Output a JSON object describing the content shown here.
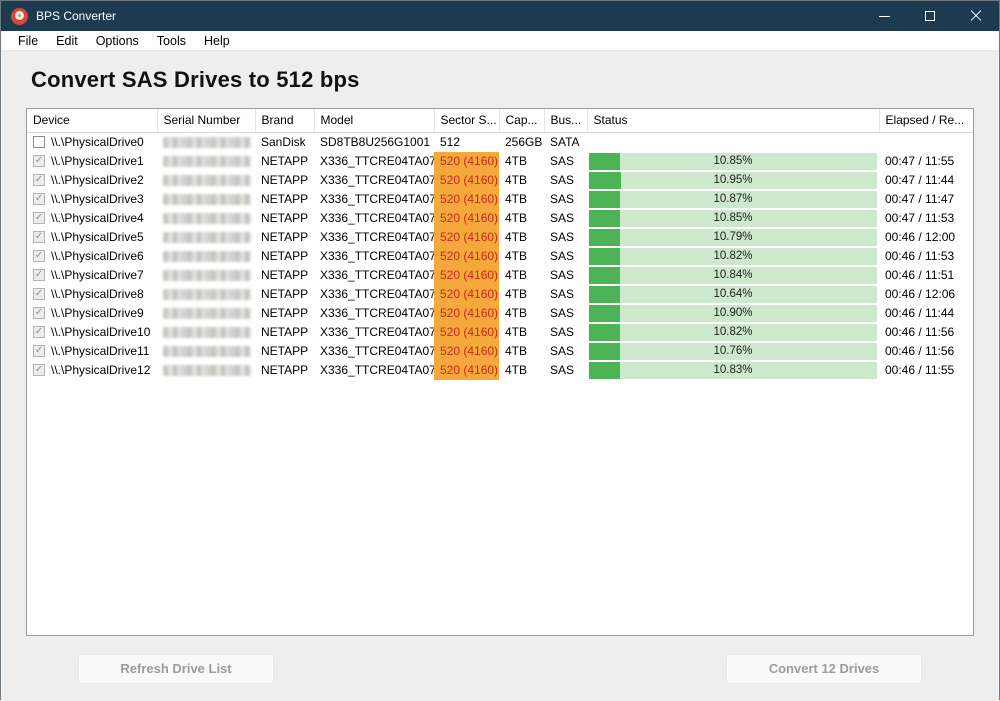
{
  "window": {
    "title": "BPS Converter",
    "icon": "disk-app-icon",
    "controls": [
      "minimize",
      "maximize",
      "close"
    ]
  },
  "menu": {
    "items": [
      "File",
      "Edit",
      "Options",
      "Tools",
      "Help"
    ]
  },
  "heading": "Convert SAS Drives to 512 bps",
  "table": {
    "columns": [
      {
        "key": "device",
        "label": "Device"
      },
      {
        "key": "serial",
        "label": "Serial Number"
      },
      {
        "key": "brand",
        "label": "Brand"
      },
      {
        "key": "model",
        "label": "Model"
      },
      {
        "key": "sector",
        "label": "Sector S..."
      },
      {
        "key": "capacity",
        "label": "Cap..."
      },
      {
        "key": "bus",
        "label": "Bus..."
      },
      {
        "key": "status",
        "label": "Status"
      },
      {
        "key": "elapsed",
        "label": "Elapsed / Re..."
      }
    ],
    "rows": [
      {
        "device": "\\\\.\\PhysicalDrive0",
        "checked": false,
        "serial_masked": true,
        "brand": "SanDisk",
        "model": "SD8TB8U256G1001",
        "sector": "512",
        "sector_alert": false,
        "capacity": "256GB",
        "bus": "SATA",
        "progress": null,
        "progress_label": "",
        "elapsed": ""
      },
      {
        "device": "\\\\.\\PhysicalDrive1",
        "checked": true,
        "serial_masked": true,
        "brand": "NETAPP",
        "model": "X336_TTCRE04TA07",
        "sector": "520 (4160)",
        "sector_alert": true,
        "capacity": "4TB",
        "bus": "SAS",
        "progress": 10.85,
        "progress_label": "10.85%",
        "elapsed": "00:47 / 11:55"
      },
      {
        "device": "\\\\.\\PhysicalDrive2",
        "checked": true,
        "serial_masked": true,
        "brand": "NETAPP",
        "model": "X336_TTCRE04TA07",
        "sector": "520 (4160)",
        "sector_alert": true,
        "capacity": "4TB",
        "bus": "SAS",
        "progress": 10.95,
        "progress_label": "10.95%",
        "elapsed": "00:47 / 11:44"
      },
      {
        "device": "\\\\.\\PhysicalDrive3",
        "checked": true,
        "serial_masked": true,
        "brand": "NETAPP",
        "model": "X336_TTCRE04TA07",
        "sector": "520 (4160)",
        "sector_alert": true,
        "capacity": "4TB",
        "bus": "SAS",
        "progress": 10.87,
        "progress_label": "10.87%",
        "elapsed": "00:47 / 11:47"
      },
      {
        "device": "\\\\.\\PhysicalDrive4",
        "checked": true,
        "serial_masked": true,
        "brand": "NETAPP",
        "model": "X336_TTCRE04TA07",
        "sector": "520 (4160)",
        "sector_alert": true,
        "capacity": "4TB",
        "bus": "SAS",
        "progress": 10.85,
        "progress_label": "10.85%",
        "elapsed": "00:47 / 11:53"
      },
      {
        "device": "\\\\.\\PhysicalDrive5",
        "checked": true,
        "serial_masked": true,
        "brand": "NETAPP",
        "model": "X336_TTCRE04TA07",
        "sector": "520 (4160)",
        "sector_alert": true,
        "capacity": "4TB",
        "bus": "SAS",
        "progress": 10.79,
        "progress_label": "10.79%",
        "elapsed": "00:46 / 12:00"
      },
      {
        "device": "\\\\.\\PhysicalDrive6",
        "checked": true,
        "serial_masked": true,
        "brand": "NETAPP",
        "model": "X336_TTCRE04TA07",
        "sector": "520 (4160)",
        "sector_alert": true,
        "capacity": "4TB",
        "bus": "SAS",
        "progress": 10.82,
        "progress_label": "10.82%",
        "elapsed": "00:46 / 11:53"
      },
      {
        "device": "\\\\.\\PhysicalDrive7",
        "checked": true,
        "serial_masked": true,
        "brand": "NETAPP",
        "model": "X336_TTCRE04TA07",
        "sector": "520 (4160)",
        "sector_alert": true,
        "capacity": "4TB",
        "bus": "SAS",
        "progress": 10.84,
        "progress_label": "10.84%",
        "elapsed": "00:46 / 11:51"
      },
      {
        "device": "\\\\.\\PhysicalDrive8",
        "checked": true,
        "serial_masked": true,
        "brand": "NETAPP",
        "model": "X336_TTCRE04TA07",
        "sector": "520 (4160)",
        "sector_alert": true,
        "capacity": "4TB",
        "bus": "SAS",
        "progress": 10.64,
        "progress_label": "10.64%",
        "elapsed": "00:46 / 12:06"
      },
      {
        "device": "\\\\.\\PhysicalDrive9",
        "checked": true,
        "serial_masked": true,
        "brand": "NETAPP",
        "model": "X336_TTCRE04TA07",
        "sector": "520 (4160)",
        "sector_alert": true,
        "capacity": "4TB",
        "bus": "SAS",
        "progress": 10.9,
        "progress_label": "10.90%",
        "elapsed": "00:46 / 11:44"
      },
      {
        "device": "\\\\.\\PhysicalDrive10",
        "checked": true,
        "serial_masked": true,
        "brand": "NETAPP",
        "model": "X336_TTCRE04TA07",
        "sector": "520 (4160)",
        "sector_alert": true,
        "capacity": "4TB",
        "bus": "SAS",
        "progress": 10.82,
        "progress_label": "10.82%",
        "elapsed": "00:46 / 11:56"
      },
      {
        "device": "\\\\.\\PhysicalDrive11",
        "checked": true,
        "serial_masked": true,
        "brand": "NETAPP",
        "model": "X336_TTCRE04TA07",
        "sector": "520 (4160)",
        "sector_alert": true,
        "capacity": "4TB",
        "bus": "SAS",
        "progress": 10.76,
        "progress_label": "10.76%",
        "elapsed": "00:46 / 11:56"
      },
      {
        "device": "\\\\.\\PhysicalDrive12",
        "checked": true,
        "serial_masked": true,
        "brand": "NETAPP",
        "model": "X336_TTCRE04TA07",
        "sector": "520 (4160)",
        "sector_alert": true,
        "capacity": "4TB",
        "bus": "SAS",
        "progress": 10.83,
        "progress_label": "10.83%",
        "elapsed": "00:46 / 11:55"
      }
    ]
  },
  "footer": {
    "refresh_label": "Refresh Drive List",
    "convert_label": "Convert 12 Drives"
  },
  "colors": {
    "titlebar_bg": "#1d3b50",
    "sector_alert_bg": "#f5a93c",
    "sector_alert_text": "#c9281c",
    "progress_track": "#cde9cd",
    "progress_fill": "#4db456"
  }
}
